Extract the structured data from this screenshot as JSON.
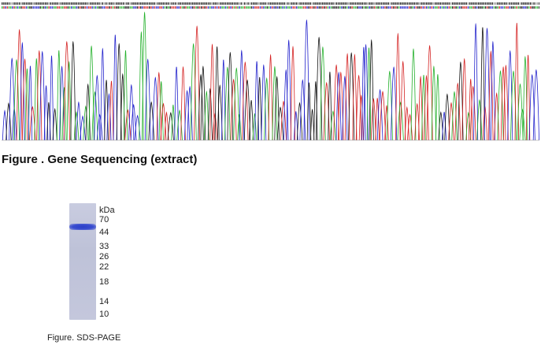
{
  "gene_sequencing": {
    "caption": "Figure . Gene Sequencing (extract)",
    "trace_colors": {
      "A": "#22b02a",
      "C": "#2222cc",
      "G": "#111111",
      "T": "#d42020"
    }
  },
  "sds_page": {
    "unit_label": "kDa",
    "markers": [
      "70",
      "44",
      "33",
      "26",
      "22",
      "18",
      "14",
      "10"
    ],
    "band_color": "#3344cc",
    "caption": "Figure. SDS-PAGE"
  }
}
